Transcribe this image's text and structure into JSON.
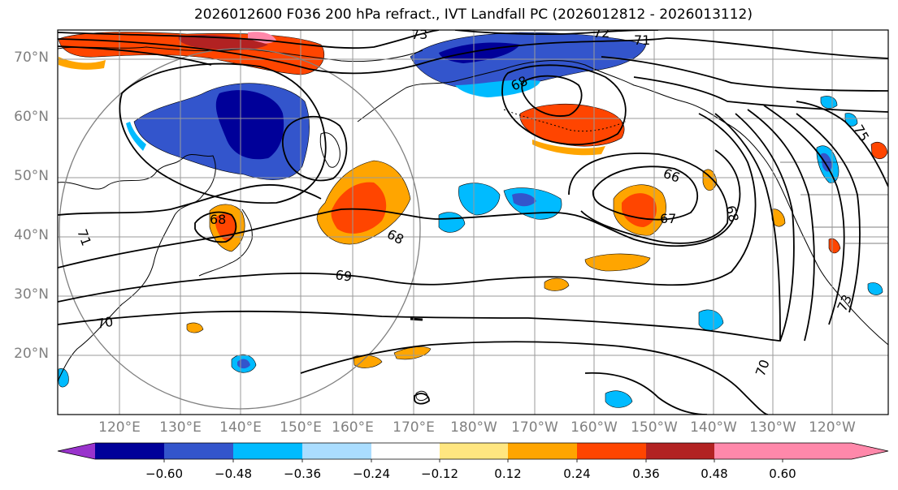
{
  "title": "2026012600 F036 200 hPa refract., IVT Landfall PC (2026012812 - 2026013112)",
  "map": {
    "lat_labels": [
      "70°N",
      "60°N",
      "50°N",
      "40°N",
      "30°N",
      "20°N"
    ],
    "lon_labels": [
      "120°E",
      "130°E",
      "140°E",
      "150°E",
      "160°E",
      "170°E",
      "180°W",
      "170°W",
      "160°W",
      "150°W",
      "140°W",
      "130°W",
      "120°W"
    ],
    "contour_labels": [
      "73",
      "72",
      "71",
      "66",
      "67",
      "68",
      "68",
      "69",
      "70",
      "71",
      "70",
      "73",
      "75",
      "68",
      "68"
    ]
  },
  "colorbar": {
    "colors": [
      "#9933cc",
      "#000099",
      "#3355cc",
      "#00bbff",
      "#aaddff",
      "#ffffff",
      "#ffe680",
      "#ffa500",
      "#ff4500",
      "#b22222",
      "#ff88aa"
    ],
    "ticks": [
      "−0.60",
      "−0.48",
      "−0.36",
      "−0.24",
      "−0.12",
      "0.12",
      "0.24",
      "0.36",
      "0.48",
      "0.60"
    ]
  }
}
